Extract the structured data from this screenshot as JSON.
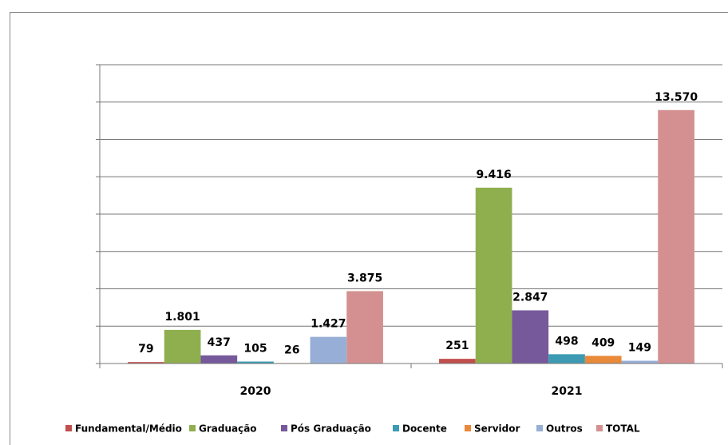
{
  "chart_data": {
    "type": "bar",
    "categories": [
      "2020",
      "2021"
    ],
    "series": [
      {
        "name": "Fundamental/Médio",
        "color": "#c0504d",
        "values": [
          79,
          251
        ],
        "value_labels": [
          "79",
          "251"
        ]
      },
      {
        "name": "Graduação",
        "color": "#8faf4f",
        "values": [
          1801,
          9416
        ],
        "value_labels": [
          "1.801",
          "9.416"
        ]
      },
      {
        "name": "Pós Graduação",
        "color": "#76599a",
        "values": [
          437,
          2847
        ],
        "value_labels": [
          "437",
          "2.847"
        ]
      },
      {
        "name": "Docente",
        "color": "#3c9bb2",
        "values": [
          105,
          498
        ],
        "value_labels": [
          "105",
          "498"
        ]
      },
      {
        "name": "Servidor",
        "color": "#e9893a",
        "values": [
          26,
          409
        ],
        "value_labels": [
          "26",
          "409"
        ]
      },
      {
        "name": "Outros",
        "color": "#97afd6",
        "values": [
          1427,
          149
        ],
        "value_labels": [
          "1.427",
          "149"
        ]
      },
      {
        "name": "TOTAL",
        "color": "#d49090",
        "values": [
          3875,
          13570
        ],
        "value_labels": [
          "3.875",
          "13.570"
        ]
      }
    ],
    "ylim": [
      0,
      16000
    ],
    "yticks": [
      0,
      2000,
      4000,
      6000,
      8000,
      10000,
      12000,
      14000,
      16000
    ],
    "grid": true
  }
}
